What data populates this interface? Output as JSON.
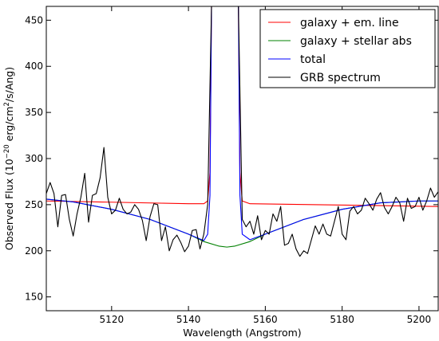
{
  "chart_data": {
    "type": "line",
    "xlabel": "Wavelength (Angstrom)",
    "ylabel_prefix": "Observed Flux (10",
    "ylabel_exp1": "−20",
    "ylabel_mid": " erg/cm",
    "ylabel_exp2": "2",
    "ylabel_suffix": "/s/Ang)",
    "xlim": [
      5103,
      5205
    ],
    "ylim": [
      135,
      465
    ],
    "xticks": [
      5120,
      5140,
      5160,
      5180,
      5200
    ],
    "yticks": [
      150,
      200,
      250,
      300,
      350,
      400,
      450
    ],
    "grid": false,
    "legend_position": "top-right",
    "legend": [
      {
        "label": "galaxy + em. line",
        "color": "#ff0000"
      },
      {
        "label": "galaxy + stellar abs",
        "color": "#008000"
      },
      {
        "label": "total",
        "color": "#0000ff"
      },
      {
        "label": "GRB spectrum",
        "color": "#000000"
      }
    ],
    "series": [
      {
        "name": "galaxy + em. line",
        "color": "#ff0000",
        "x": [
          5103,
          5120,
          5140,
          5144,
          5145,
          5145.6,
          5146,
          5147,
          5152,
          5153,
          5153.4,
          5154,
          5156,
          5170,
          5190,
          5205
        ],
        "y": [
          254,
          252.7,
          251,
          251,
          254,
          285,
          465,
          470,
          470,
          465,
          285,
          254,
          251,
          250.2,
          249,
          248
        ]
      },
      {
        "name": "galaxy + stellar abs",
        "color": "#008000",
        "x": [
          5103,
          5110,
          5120,
          5130,
          5140,
          5144,
          5148,
          5150,
          5152,
          5156,
          5160,
          5170,
          5180,
          5190,
          5200,
          5205
        ],
        "y": [
          256,
          253,
          245,
          234,
          218,
          210,
          205,
          204,
          205,
          210,
          218,
          234,
          245,
          252,
          254,
          254
        ]
      },
      {
        "name": "total",
        "color": "#0000ff",
        "x": [
          5103,
          5110,
          5120,
          5130,
          5140,
          5144,
          5145,
          5145.6,
          5146,
          5147,
          5152,
          5153,
          5153.4,
          5154,
          5156,
          5160,
          5170,
          5180,
          5190,
          5200,
          5205
        ],
        "y": [
          256,
          253,
          245,
          234,
          218,
          211,
          218,
          260,
          465,
          470,
          470,
          465,
          260,
          218,
          212,
          218,
          234,
          245,
          252,
          254,
          254
        ]
      },
      {
        "name": "GRB spectrum",
        "color": "#000000",
        "x": [
          5103,
          5104,
          5105,
          5106,
          5107,
          5108,
          5109,
          5110,
          5111,
          5112,
          5113,
          5114,
          5115,
          5116,
          5117,
          5118,
          5119,
          5120,
          5121,
          5122,
          5123,
          5124,
          5125,
          5126,
          5127,
          5128,
          5129,
          5130,
          5131,
          5132,
          5133,
          5134,
          5135,
          5136,
          5137,
          5138,
          5139,
          5140,
          5141,
          5142,
          5143,
          5144,
          5145,
          5146,
          5147,
          5148,
          5150,
          5152,
          5153,
          5154,
          5155,
          5156,
          5157,
          5158,
          5159,
          5160,
          5161,
          5162,
          5163,
          5164,
          5165,
          5166,
          5167,
          5168,
          5169,
          5170,
          5171,
          5172,
          5173,
          5174,
          5175,
          5176,
          5177,
          5178,
          5179,
          5180,
          5181,
          5182,
          5183,
          5184,
          5185,
          5186,
          5187,
          5188,
          5189,
          5190,
          5191,
          5192,
          5193,
          5194,
          5195,
          5196,
          5197,
          5198,
          5199,
          5200,
          5201,
          5202,
          5203,
          5204,
          5205
        ],
        "y": [
          262,
          274,
          262,
          226,
          260,
          261,
          234,
          216,
          240,
          258,
          284,
          231,
          260,
          262,
          279,
          312,
          258,
          240,
          244,
          257,
          245,
          240,
          242,
          250,
          245,
          233,
          211,
          237,
          251,
          250,
          211,
          226,
          200,
          212,
          217,
          209,
          199,
          205,
          222,
          223,
          202,
          218,
          250,
          465,
          470,
          470,
          470,
          470,
          465,
          234,
          226,
          232,
          218,
          238,
          212,
          222,
          218,
          240,
          232,
          248,
          206,
          208,
          218,
          202,
          194,
          200,
          197,
          212,
          227,
          218,
          229,
          218,
          216,
          232,
          248,
          218,
          212,
          243,
          248,
          240,
          244,
          257,
          251,
          244,
          256,
          263,
          247,
          240,
          248,
          258,
          252,
          232,
          257,
          246,
          248,
          258,
          244,
          254,
          268,
          258,
          264
        ]
      }
    ]
  }
}
